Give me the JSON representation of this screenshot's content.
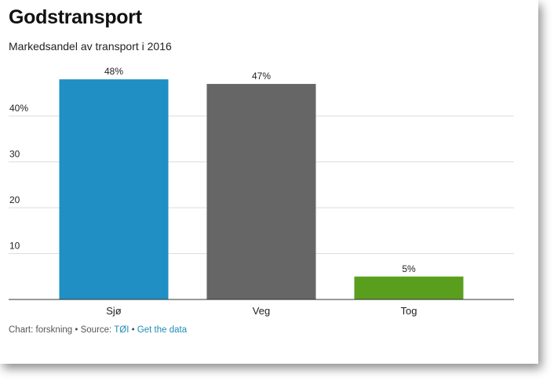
{
  "chart_data": {
    "type": "bar",
    "title": "Godstransport",
    "subtitle": "Markedsandel av transport i 2016",
    "categories": [
      "Sjø",
      "Veg",
      "Tog"
    ],
    "values": [
      48,
      47,
      5
    ],
    "data_labels": [
      "48%",
      "47%",
      "5%"
    ],
    "colors": [
      "#1f8fc4",
      "#666666",
      "#5a9e1e"
    ],
    "ylim": [
      0,
      50
    ],
    "yticks": [
      10,
      20,
      30,
      40
    ],
    "ytick_labels": [
      "10",
      "20",
      "30",
      "40%"
    ],
    "grid": true,
    "xlabel": "",
    "ylabel": ""
  },
  "footer": {
    "credit": "Chart: forskning",
    "sep1": " • Source: ",
    "source_link": "TØI",
    "sep2": " • ",
    "data_link": "Get the data"
  }
}
